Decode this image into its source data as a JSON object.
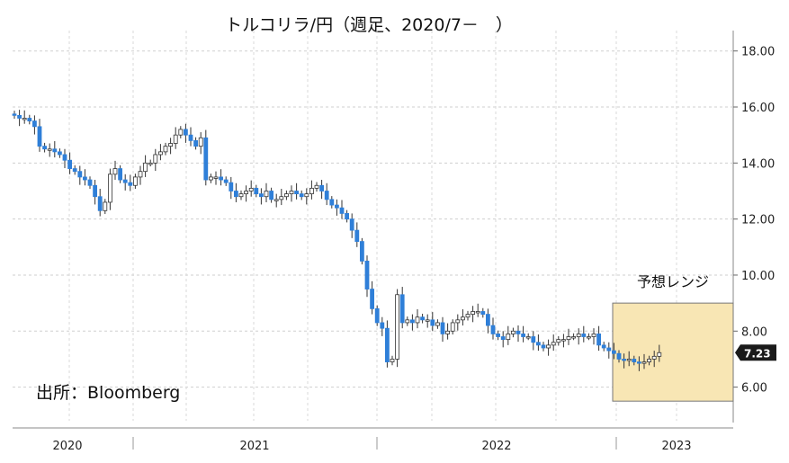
{
  "chart_data": {
    "type": "candlestick",
    "title": "トルコリラ/円（週足、2020/7－　）",
    "source": "出所：Bloomberg",
    "y_axis_position": "right",
    "ylim": [
      4.8,
      18.6
    ],
    "y_ticks": [
      "18.00",
      "16.00",
      "14.00",
      "12.00",
      "10.00",
      "8.00",
      "6.00"
    ],
    "y_tick_values": [
      18,
      16,
      14,
      12,
      10,
      8,
      6
    ],
    "x_labels": [
      "2020",
      "2021",
      "2022",
      "2023"
    ],
    "grid": true,
    "last_value": 7.23,
    "last_value_label": "7.23",
    "forecast_range": {
      "label": "予想レンジ",
      "low": 5.5,
      "high": 9.0
    },
    "colors": {
      "up": "#ffffff",
      "down": "#2f7fd8",
      "wick": "#333333",
      "range_fill": "#f8e6b4",
      "range_border": "#777777",
      "last_badge": "#1a1a1a"
    },
    "series_close": [
      15.7,
      15.6,
      15.6,
      15.5,
      15.3,
      14.6,
      14.5,
      14.5,
      14.4,
      14.3,
      14.1,
      13.8,
      13.7,
      13.5,
      13.4,
      13.2,
      12.8,
      12.3,
      12.6,
      13.6,
      13.8,
      13.4,
      13.3,
      13.2,
      13.5,
      13.7,
      14.0,
      14.0,
      14.3,
      14.4,
      14.6,
      14.7,
      15.0,
      15.2,
      15.0,
      14.8,
      14.6,
      14.9,
      13.4,
      13.5,
      13.5,
      13.4,
      13.3,
      13.0,
      12.8,
      12.9,
      13.0,
      13.1,
      12.9,
      12.8,
      13.0,
      12.7,
      12.7,
      12.8,
      12.9,
      13.0,
      12.9,
      12.8,
      12.9,
      13.1,
      13.2,
      13.0,
      12.7,
      12.5,
      12.4,
      12.2,
      12.0,
      11.6,
      11.2,
      10.5,
      9.5,
      8.8,
      8.3,
      8.1,
      6.9,
      7.0,
      9.3,
      8.3,
      8.4,
      8.3,
      8.5,
      8.4,
      8.4,
      8.2,
      8.3,
      7.9,
      8.0,
      8.3,
      8.4,
      8.5,
      8.6,
      8.7,
      8.7,
      8.6,
      8.2,
      7.9,
      7.8,
      7.7,
      7.9,
      8.0,
      7.9,
      7.8,
      7.8,
      7.6,
      7.5,
      7.4,
      7.5,
      7.6,
      7.7,
      7.7,
      7.8,
      7.8,
      7.9,
      7.8,
      7.8,
      7.9,
      7.5,
      7.4,
      7.3,
      7.2,
      7.0,
      6.95,
      7.0,
      6.9,
      6.85,
      6.9,
      7.0,
      7.1,
      7.23
    ]
  }
}
